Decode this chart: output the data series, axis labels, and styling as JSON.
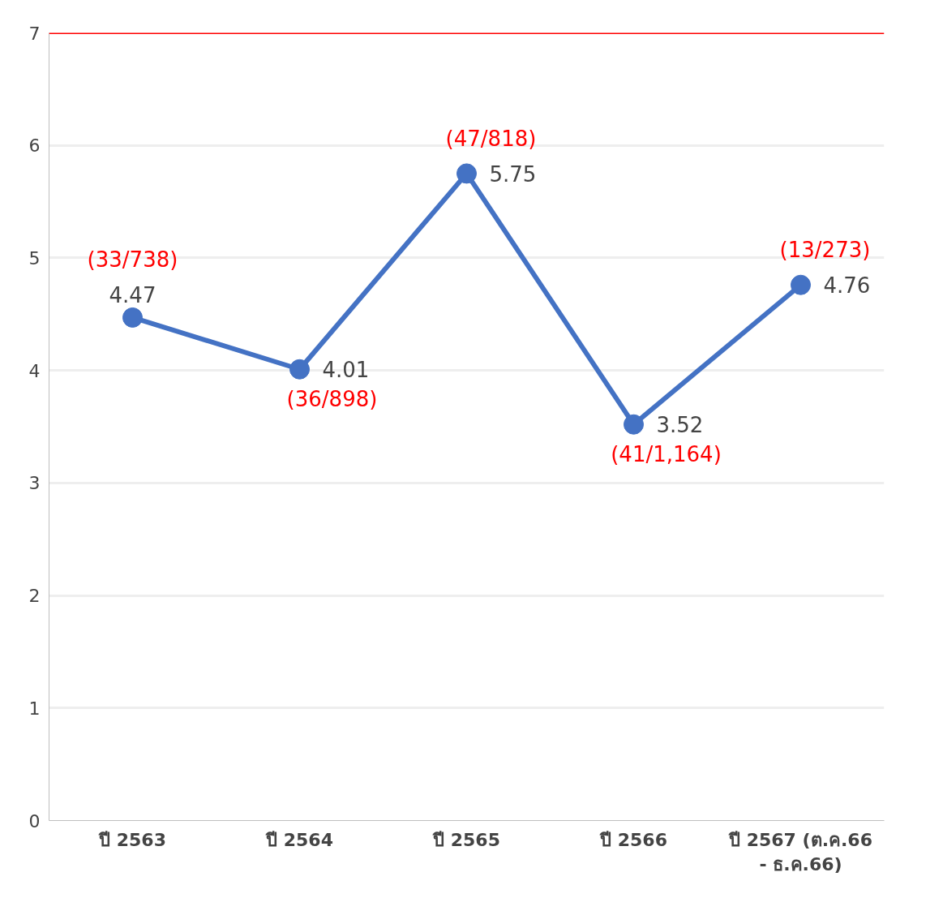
{
  "chart_data": {
    "type": "line",
    "categories": [
      "ปี 2563",
      "ปี 2564",
      "ปี 2565",
      "ปี 2566",
      "ปี 2567 (ต.ค.66 - ธ.ค.66)"
    ],
    "series": [
      {
        "color": "#4472c4",
        "values": [
          4.47,
          4.01,
          5.75,
          3.52,
          4.76
        ]
      }
    ],
    "data_labels": true,
    "ylim": [
      0,
      7
    ],
    "yticks": [
      0,
      1,
      2,
      3,
      4,
      5,
      6,
      7
    ],
    "grid": "y",
    "marker": "circle",
    "line_style": "solid",
    "ref_lines": [
      {
        "axis": "y",
        "value": 7,
        "color": "#ff0000"
      }
    ],
    "annotations": [
      {
        "text": "(33/738)",
        "x": "ปี 2563",
        "y": 4.47
      },
      {
        "text": "(36/898)",
        "x": "ปี 2564",
        "y": 4.01
      },
      {
        "text": "(47/818)",
        "x": "ปี 2565",
        "y": 5.75
      },
      {
        "text": "(41/1,164)",
        "x": "ปี 2566",
        "y": 3.52
      },
      {
        "text": "(13/273)",
        "x": "ปี 2567 (ต.ค.66 - ธ.ค.66)",
        "y": 4.76
      }
    ]
  }
}
